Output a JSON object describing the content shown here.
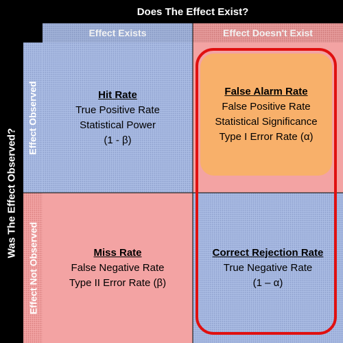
{
  "header_top": "Does The Effect Exist?",
  "header_left": "Was The Effect Observed?",
  "columns": [
    "Effect Exists",
    "Effect Doesn't Exist"
  ],
  "rows": [
    "Effect Observed",
    "Effect Not Observed"
  ],
  "cells": {
    "top_left": {
      "title": "Hit Rate",
      "lines": [
        "True Positive Rate",
        "Statistical Power",
        "(1 - β)"
      ]
    },
    "top_right": {
      "title": "False Alarm Rate",
      "lines": [
        "False Positive Rate",
        "Statistical Significance",
        "Type I Error Rate (α)"
      ]
    },
    "bottom_left": {
      "title": "Miss Rate",
      "lines": [
        "False Negative Rate",
        "Type II Error Rate (β)"
      ]
    },
    "bottom_right": {
      "title": "Correct Rejection Rate",
      "lines": [
        "True Negative Rate",
        "(1 – α)"
      ]
    }
  },
  "colors": {
    "blue": "#a9bbe3",
    "red": "#f3a3a3",
    "orange": "#f8b06a",
    "outline": "#e01010"
  }
}
